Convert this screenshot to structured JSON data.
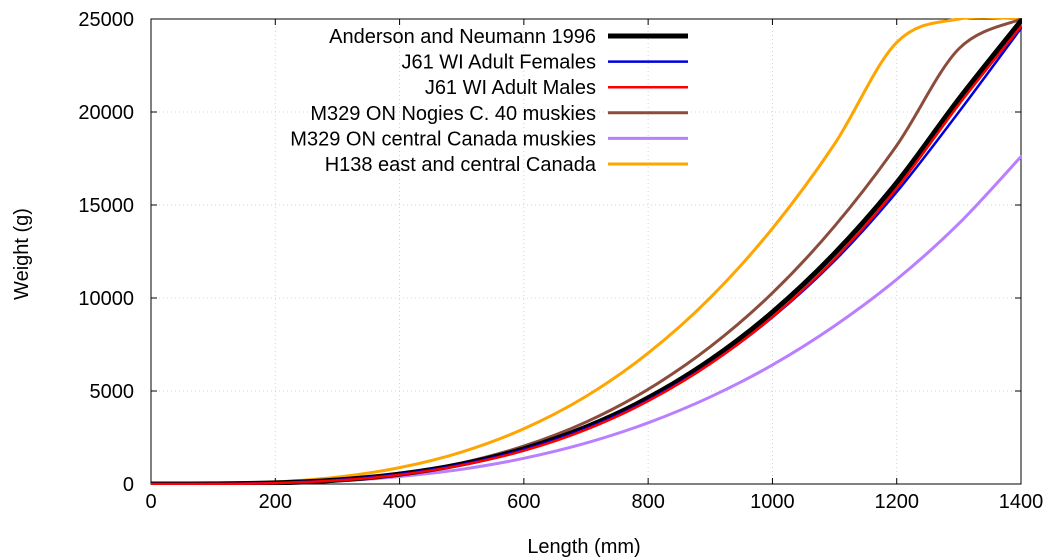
{
  "chart_data": {
    "type": "line",
    "xlabel": "Length (mm)",
    "ylabel": "Weight (g)",
    "xlim": [
      0,
      1400
    ],
    "ylim": [
      0,
      25000
    ],
    "xticks": [
      0,
      200,
      400,
      600,
      800,
      1000,
      1200,
      1400
    ],
    "yticks": [
      0,
      5000,
      10000,
      15000,
      20000,
      25000
    ],
    "grid": true,
    "legend_position": "top-center",
    "x": [
      0,
      100,
      200,
      300,
      400,
      500,
      600,
      700,
      800,
      900,
      1000,
      1100,
      1200,
      1300,
      1400
    ],
    "series": [
      {
        "name": "Anderson and Neumann 1996",
        "color": "#000000",
        "values": [
          0,
          6,
          58,
          214,
          530,
          1070,
          1890,
          3060,
          4630,
          6670,
          9240,
          12400,
          16200,
          20700,
          24900
        ]
      },
      {
        "name": "J61 WI Adult Females",
        "color": "#0000dd",
        "values": [
          0,
          7,
          62,
          218,
          530,
          1055,
          1850,
          2980,
          4510,
          6480,
          8960,
          12000,
          15700,
          20000,
          24500
        ]
      },
      {
        "name": "J61 WI Adult Males",
        "color": "#ff0000",
        "values": [
          0,
          5,
          50,
          192,
          490,
          1010,
          1790,
          2920,
          4460,
          6460,
          8980,
          12100,
          15900,
          20400,
          24600
        ]
      },
      {
        "name": "M329 ON Nogies C. 40 muskies",
        "color": "#8b4c3c",
        "values": [
          0,
          6,
          56,
          215,
          550,
          1130,
          2040,
          3330,
          5090,
          7380,
          10270,
          13860,
          18200,
          23400,
          25000
        ]
      },
      {
        "name": "M329 ON central Canada muskies",
        "color": "#b97fff",
        "values": [
          0,
          5,
          45,
          160,
          400,
          790,
          1380,
          2200,
          3290,
          4680,
          6400,
          8500,
          11000,
          14000,
          17600
        ]
      },
      {
        "name": "H138 east and central Canada",
        "color": "#ffa500",
        "values": [
          0,
          14,
          110,
          370,
          880,
          1720,
          2970,
          4710,
          7040,
          10020,
          13740,
          18280,
          23740,
          25000,
          25000
        ]
      }
    ]
  }
}
